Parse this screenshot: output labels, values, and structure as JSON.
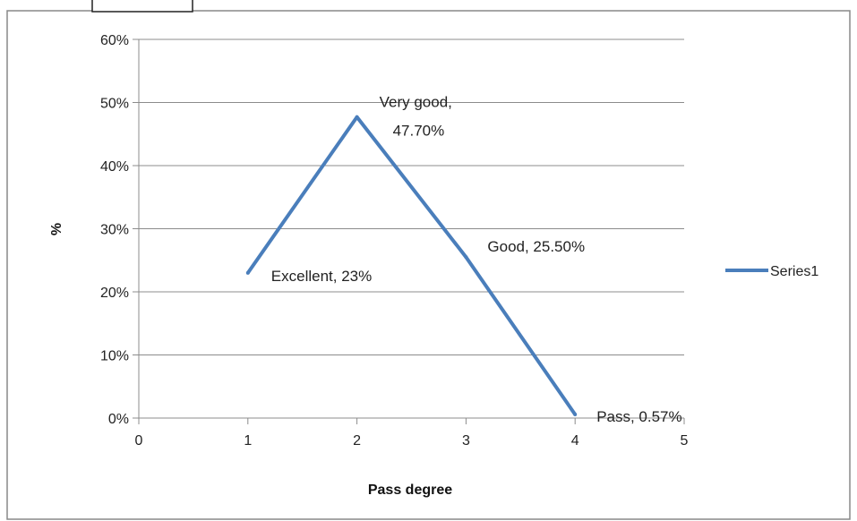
{
  "chart_data": {
    "type": "line",
    "xlabel": "Pass degree",
    "ylabel": "%",
    "xlim": [
      0,
      5
    ],
    "ylim": [
      0,
      60
    ],
    "x_ticks": [
      "0",
      "1",
      "2",
      "3",
      "4",
      "5"
    ],
    "y_ticks": [
      "0%",
      "10%",
      "20%",
      "30%",
      "40%",
      "50%",
      "60%"
    ],
    "grid": true,
    "legend_position": "right",
    "series": [
      {
        "name": "Series1",
        "color": "#4a7ebb",
        "points": [
          {
            "x": 1,
            "y": 23,
            "label_line1": "Excellent, 23%",
            "label_line2": ""
          },
          {
            "x": 2,
            "y": 47.7,
            "label_line1": "Very good,",
            "label_line2": "47.70%"
          },
          {
            "x": 3,
            "y": 25.5,
            "label_line1": "Good, 25.50%",
            "label_line2": ""
          },
          {
            "x": 4,
            "y": 0.57,
            "label_line1": "Pass, 0.57%",
            "label_line2": ""
          }
        ]
      }
    ]
  }
}
